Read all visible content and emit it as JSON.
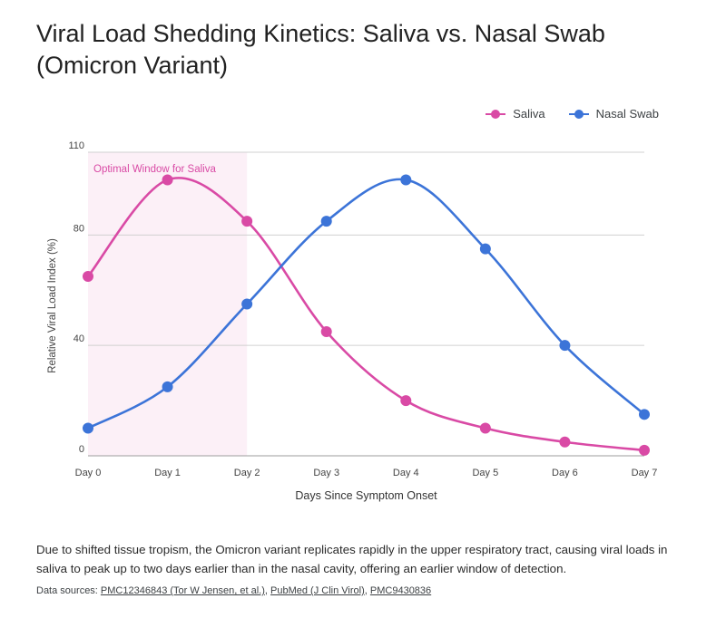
{
  "title_line1": "Viral Load Shedding Kinetics: Saliva vs. Nasal Swab",
  "title_line2": "(Omicron Variant)",
  "chart_data": {
    "type": "line",
    "categories": [
      "Day 0",
      "Day 1",
      "Day 2",
      "Day 3",
      "Day 4",
      "Day 5",
      "Day 6",
      "Day 7"
    ],
    "series": [
      {
        "name": "Saliva",
        "color": "#d94aa5",
        "values": [
          65,
          100,
          85,
          45,
          20,
          10,
          5,
          2
        ]
      },
      {
        "name": "Nasal Swab",
        "color": "#3c74d8",
        "values": [
          10,
          25,
          55,
          85,
          100,
          75,
          40,
          15
        ]
      }
    ],
    "xlabel": "Days Since Symptom Onset",
    "ylabel": "Relative Viral Load Index (%)",
    "ylim": [
      0,
      110
    ],
    "yticks": [
      0,
      40,
      80,
      110
    ],
    "grid": true,
    "legend_position": "top-right",
    "highlight": {
      "label": "Optimal Window for Saliva",
      "from": "Day 0",
      "to": "Day 2",
      "color": "#fcf0f7"
    }
  },
  "note": "Due to shifted tissue tropism, the Omicron variant replicates rapidly in the upper respiratory tract, causing viral loads in saliva to peak up to two days earlier than in the nasal cavity, offering an earlier window of detection.",
  "sources": {
    "prefix": "Data sources: ",
    "links": [
      "PMC12346843 (Tor W Jensen, et al.)",
      "PubMed (J Clin Virol)",
      "PMC9430836"
    ]
  }
}
